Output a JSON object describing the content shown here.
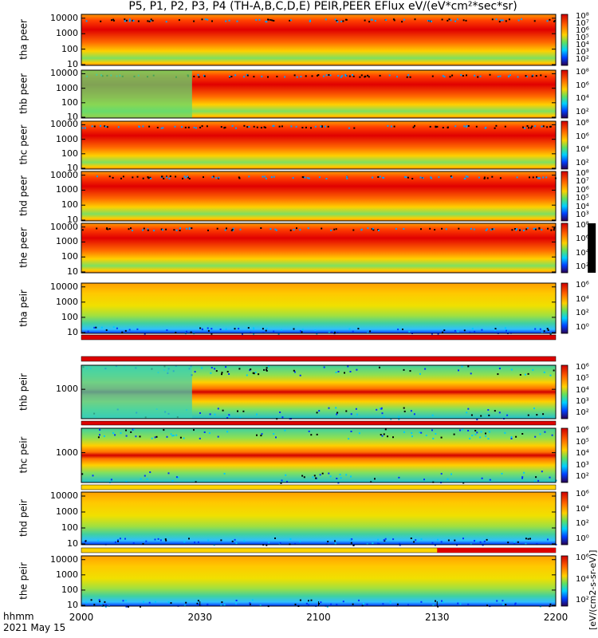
{
  "title": "P5, P1, P2, P3, P4 (TH-A,B,C,D,E) PEIR,PEER EFlux eV/(eV*cm²*sec*sr)",
  "footer": {
    "time_label": "hhmm",
    "date_label": "2021 May 15"
  },
  "colorbar_label": "[eV/(cm2-s-sr-eV)]",
  "colors": {
    "hot": "#dc0000",
    "mid": "#ffd400",
    "cool": "#40d080",
    "low": "#00c8ff",
    "none": "#000000"
  },
  "chart_data": {
    "type": "heatmap",
    "x_axis": {
      "ticks": [
        "2000",
        "2030",
        "2100",
        "2130",
        "2200"
      ],
      "range": [
        "20:00",
        "22:00"
      ]
    },
    "y_scale": "log",
    "panels": [
      {
        "probe": "tha",
        "species": "peer",
        "ylabel": "tha peer",
        "yticks": [
          "10000",
          "1000",
          "100",
          "10"
        ],
        "cb_ticks": [
          "10⁸",
          "10⁷",
          "10⁶",
          "10⁵",
          "10⁴",
          "10³",
          "10²"
        ]
      },
      {
        "probe": "thb",
        "species": "peer",
        "ylabel": "thb peer",
        "yticks": [
          "10000",
          "1000",
          "100",
          "10"
        ],
        "cb_ticks": [
          "10⁸",
          "10⁶",
          "10⁴",
          "10²"
        ]
      },
      {
        "probe": "thc",
        "species": "peer",
        "ylabel": "thc peer",
        "yticks": [
          "10000",
          "1000",
          "100",
          "10"
        ],
        "cb_ticks": [
          "10⁸",
          "10⁶",
          "10⁴",
          "10²"
        ]
      },
      {
        "probe": "thd",
        "species": "peer",
        "ylabel": "thd peer",
        "yticks": [
          "10000",
          "1000",
          "100",
          "10"
        ],
        "cb_ticks": [
          "10⁸",
          "10⁷",
          "10⁶",
          "10⁵",
          "10⁴",
          "10³"
        ]
      },
      {
        "probe": "the",
        "species": "peer",
        "ylabel": "the peer",
        "yticks": [
          "10000",
          "1000",
          "100",
          "10"
        ],
        "cb_ticks": [
          "10⁸",
          "10⁶",
          "10⁴",
          "10²"
        ]
      },
      {
        "probe": "tha",
        "species": "peir",
        "ylabel": "tha peir",
        "yticks": [
          "10000",
          "1000",
          "100",
          "10"
        ],
        "cb_ticks": [
          "10⁶",
          "10⁴",
          "10²",
          "10⁰"
        ]
      },
      {
        "probe": "thb",
        "species": "peir",
        "ylabel": "thb peir",
        "yticks": [
          "1000"
        ],
        "cb_ticks": [
          "10⁶",
          "10⁵",
          "10⁴",
          "10³",
          "10²"
        ]
      },
      {
        "probe": "thc",
        "species": "peir",
        "ylabel": "thc peir",
        "yticks": [
          "1000"
        ],
        "cb_ticks": [
          "10⁶",
          "10⁵",
          "10⁴",
          "10³",
          "10²"
        ]
      },
      {
        "probe": "thd",
        "species": "peir",
        "ylabel": "thd peir",
        "yticks": [
          "10000",
          "1000",
          "100",
          "10"
        ],
        "cb_ticks": [
          "10⁶",
          "10⁴",
          "10²",
          "10⁰"
        ]
      },
      {
        "probe": "the",
        "species": "peir",
        "ylabel": "the peir",
        "yticks": [
          "10000",
          "1000",
          "100",
          "10"
        ],
        "cb_ticks": [
          "10⁶",
          "10⁴",
          "10²"
        ]
      }
    ]
  }
}
